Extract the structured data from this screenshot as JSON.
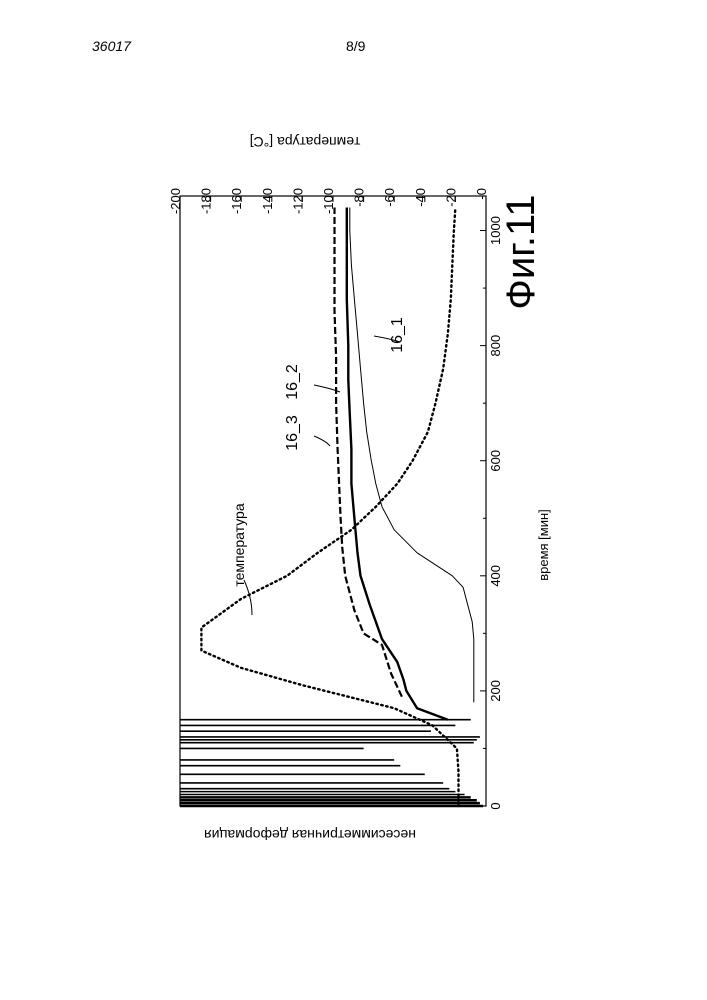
{
  "page": {
    "doc_number": "36017",
    "sheet": "8/9",
    "figure_label": "Фиг.11"
  },
  "chart_data": {
    "type": "line",
    "orientation": "rotated-90-clockwise",
    "xlabel": "время [мин]",
    "x_ticks": [
      0,
      200,
      400,
      600,
      800,
      1000
    ],
    "xlim": [
      0,
      1060
    ],
    "ylabel_left": "несесимметричная деформация",
    "ylabel_right": "температура [°C]",
    "y2_ticks": [
      0,
      20,
      40,
      60,
      80,
      100,
      120,
      140,
      160,
      180,
      200
    ],
    "y2lim": [
      0,
      200
    ],
    "grid": false,
    "series": [
      {
        "name": "температура",
        "axis": "right",
        "style": "dotted",
        "points": [
          [
            0,
            18
          ],
          [
            60,
            18
          ],
          [
            100,
            19
          ],
          [
            140,
            35
          ],
          [
            170,
            60
          ],
          [
            210,
            120
          ],
          [
            240,
            160
          ],
          [
            270,
            186
          ],
          [
            310,
            186
          ],
          [
            360,
            160
          ],
          [
            400,
            130
          ],
          [
            440,
            110
          ],
          [
            480,
            88
          ],
          [
            520,
            72
          ],
          [
            560,
            58
          ],
          [
            600,
            48
          ],
          [
            650,
            38
          ],
          [
            700,
            33
          ],
          [
            760,
            28
          ],
          [
            820,
            25
          ],
          [
            880,
            23
          ],
          [
            940,
            22
          ],
          [
            1000,
            21
          ],
          [
            1040,
            20
          ]
        ]
      },
      {
        "name": "16_1",
        "axis": "right",
        "style": "thin-solid",
        "points": [
          [
            180,
            8
          ],
          [
            240,
            8
          ],
          [
            290,
            8
          ],
          [
            320,
            9
          ],
          [
            360,
            13
          ],
          [
            380,
            15
          ],
          [
            400,
            22
          ],
          [
            440,
            45
          ],
          [
            480,
            60
          ],
          [
            520,
            68
          ],
          [
            560,
            72
          ],
          [
            600,
            75
          ],
          [
            650,
            78
          ],
          [
            700,
            80
          ],
          [
            760,
            82
          ],
          [
            820,
            84
          ],
          [
            880,
            86
          ],
          [
            940,
            88
          ],
          [
            1000,
            89
          ],
          [
            1040,
            89
          ]
        ]
      },
      {
        "name": "16_2",
        "axis": "right",
        "style": "thick-solid",
        "points": [
          [
            150,
            25
          ],
          [
            170,
            45
          ],
          [
            200,
            52
          ],
          [
            220,
            54
          ],
          [
            250,
            58
          ],
          [
            290,
            68
          ],
          [
            350,
            76
          ],
          [
            400,
            82
          ],
          [
            440,
            84
          ],
          [
            500,
            86
          ],
          [
            560,
            88
          ],
          [
            620,
            88
          ],
          [
            680,
            89
          ],
          [
            740,
            90
          ],
          [
            800,
            90
          ],
          [
            880,
            91
          ],
          [
            940,
            91
          ],
          [
            1000,
            91
          ],
          [
            1040,
            91
          ]
        ]
      },
      {
        "name": "16_3",
        "axis": "right",
        "style": "dashed",
        "points": [
          [
            190,
            55
          ],
          [
            230,
            62
          ],
          [
            280,
            68
          ],
          [
            300,
            80
          ],
          [
            340,
            86
          ],
          [
            400,
            92
          ],
          [
            450,
            94
          ],
          [
            500,
            95
          ],
          [
            560,
            96
          ],
          [
            620,
            97
          ],
          [
            700,
            98
          ],
          [
            780,
            98
          ],
          [
            860,
            99
          ],
          [
            940,
            99
          ],
          [
            1000,
            99
          ],
          [
            1040,
            99
          ]
        ]
      }
    ],
    "early_spikes_minutes": [
      0,
      5,
      10,
      15,
      20,
      25,
      30,
      40,
      55,
      70,
      80,
      100,
      110,
      115,
      120,
      130,
      140,
      150
    ]
  }
}
